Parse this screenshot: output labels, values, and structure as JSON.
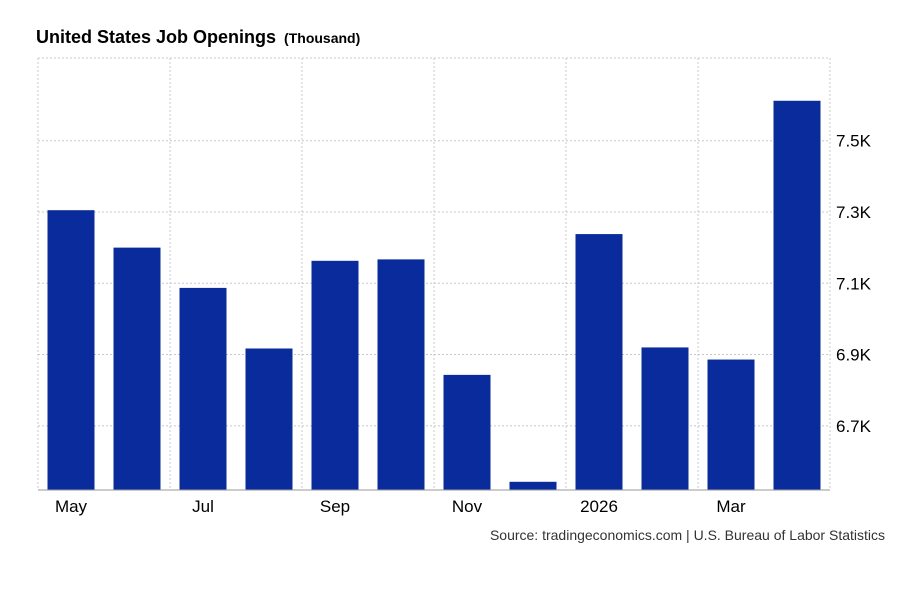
{
  "title": "United States Job Openings",
  "unit": "(Thousand)",
  "source": "Source: tradingeconomics.com | U.S. Bureau of Labor Statistics",
  "colors": {
    "bar": "#0a2b9b",
    "grid": "#c8c8c8",
    "axis": "#999999",
    "text": "#000000"
  },
  "chart_data": {
    "type": "bar",
    "title": "United States Job Openings",
    "subtitle": "(Thousand)",
    "categories": [
      "May",
      "Jun",
      "Jul",
      "Aug",
      "Sep",
      "Oct",
      "Nov",
      "Dec",
      "2026",
      "Feb",
      "Mar",
      "Apr"
    ],
    "category_labels": [
      "May",
      "",
      "Jul",
      "",
      "Sep",
      "",
      "Nov",
      "",
      "2026",
      "",
      "Mar",
      ""
    ],
    "values": [
      7305,
      7200,
      7087,
      6917,
      7163,
      7167,
      6843,
      6543,
      7238,
      6920,
      6886,
      7612
    ],
    "ylim": [
      6520,
      7732
    ],
    "yticks": [
      6700,
      6900,
      7100,
      7300,
      7500
    ],
    "ytick_labels": [
      "6.7K",
      "6.9K",
      "7.1K",
      "7.3K",
      "7.5K"
    ],
    "xlabel": "",
    "ylabel": "",
    "grid": true,
    "y_axis_position": "right"
  }
}
